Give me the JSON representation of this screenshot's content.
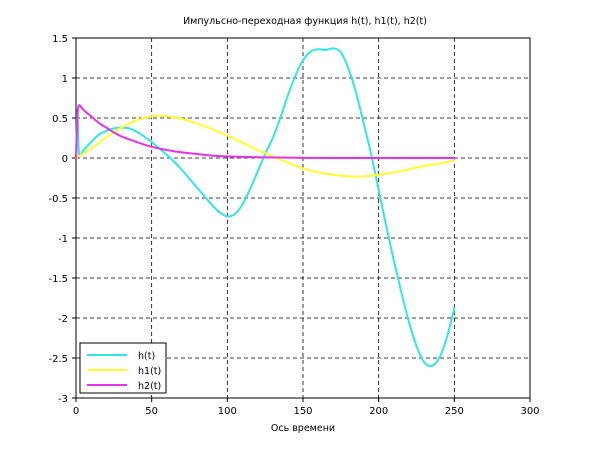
{
  "chart_data": {
    "type": "line",
    "title": "Импульсно-переходная функция h(t), h1(t), h2(t)",
    "xlabel": "Ось времени",
    "ylabel": "",
    "xlim": [
      0,
      300
    ],
    "ylim": [
      -3,
      1.5
    ],
    "xticks": [
      "0",
      "50",
      "100",
      "150",
      "200",
      "250",
      "300"
    ],
    "yticks": [
      "1.5",
      "1",
      "0.5",
      "0",
      "-0.5",
      "-1",
      "-1.5",
      "-2",
      "-2.5",
      "-3"
    ],
    "grid": true,
    "grid_style": "dashed",
    "legend_position": "bottom-left",
    "legend": [
      "h(t)",
      "h1(t)",
      "h2(t)"
    ],
    "series": [
      {
        "name": "h(t)",
        "color": "#33e6e6",
        "x": [
          0,
          1,
          2,
          5,
          10,
          15,
          20,
          25,
          30,
          35,
          40,
          45,
          50,
          55,
          60,
          65,
          70,
          75,
          80,
          85,
          90,
          95,
          100,
          105,
          110,
          115,
          120,
          125,
          130,
          135,
          140,
          145,
          150,
          155,
          160,
          165,
          170,
          175,
          180,
          185,
          190,
          195,
          200,
          205,
          210,
          215,
          220,
          225,
          230,
          235,
          240,
          245,
          250
        ],
        "y": [
          0,
          0.6,
          0.06,
          0.1,
          0.2,
          0.29,
          0.34,
          0.37,
          0.38,
          0.37,
          0.33,
          0.27,
          0.2,
          0.12,
          0.04,
          -0.05,
          -0.15,
          -0.26,
          -0.37,
          -0.48,
          -0.59,
          -0.68,
          -0.73,
          -0.7,
          -0.58,
          -0.39,
          -0.17,
          0.05,
          0.25,
          0.5,
          0.78,
          1.03,
          1.22,
          1.33,
          1.36,
          1.35,
          1.37,
          1.32,
          1.12,
          0.82,
          0.44,
          0.05,
          -0.4,
          -0.85,
          -1.28,
          -1.68,
          -2.05,
          -2.35,
          -2.55,
          -2.6,
          -2.5,
          -2.25,
          -1.88
        ]
      },
      {
        "name": "h1(t)",
        "color": "#ffff33",
        "x": [
          0,
          10,
          20,
          30,
          40,
          50,
          55,
          60,
          70,
          80,
          90,
          100,
          110,
          120,
          130,
          140,
          150,
          160,
          170,
          180,
          190,
          200,
          210,
          220,
          230,
          240,
          250
        ],
        "y": [
          0,
          0.12,
          0.26,
          0.38,
          0.47,
          0.52,
          0.53,
          0.52,
          0.49,
          0.43,
          0.36,
          0.28,
          0.19,
          0.1,
          0.02,
          -0.06,
          -0.13,
          -0.18,
          -0.21,
          -0.23,
          -0.23,
          -0.21,
          -0.18,
          -0.14,
          -0.1,
          -0.07,
          -0.03
        ]
      },
      {
        "name": "h2(t)",
        "color": "#e633e6",
        "x": [
          0,
          0.5,
          1,
          2,
          5,
          10,
          15,
          20,
          25,
          30,
          40,
          50,
          60,
          70,
          80,
          90,
          100,
          120,
          140,
          160,
          180,
          200,
          220,
          240,
          250
        ],
        "y": [
          0,
          0.3,
          0.55,
          0.66,
          0.6,
          0.52,
          0.44,
          0.38,
          0.32,
          0.27,
          0.2,
          0.14,
          0.1,
          0.07,
          0.05,
          0.03,
          0.02,
          0.01,
          0.005,
          0,
          0,
          0,
          0,
          0,
          0
        ]
      }
    ]
  }
}
